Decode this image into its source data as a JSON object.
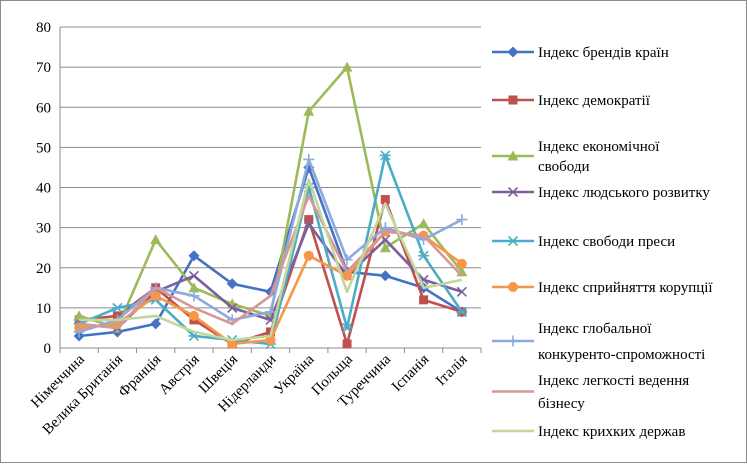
{
  "chart_data": {
    "type": "line",
    "title": "",
    "xlabel": "",
    "ylabel": "",
    "ylim": [
      0,
      80
    ],
    "yticks": [
      0,
      10,
      20,
      30,
      40,
      50,
      60,
      70,
      80
    ],
    "grid": true,
    "legend_position": "right",
    "categories": [
      "Німеччина",
      "Велика Британія",
      "Франція",
      "Австрія",
      "Швеція",
      "Нідерланди",
      "Україна",
      "Польща",
      "Туреччина",
      "Іспанія",
      "Італія"
    ],
    "series": [
      {
        "name": "Індекс брендів країн",
        "color": "#4472C4",
        "marker": "diamond",
        "values": [
          3,
          4,
          6,
          23,
          16,
          14,
          45,
          19,
          18,
          15,
          9
        ]
      },
      {
        "name": "Індекс демократії",
        "color": "#C0504D",
        "marker": "square",
        "values": [
          7,
          8,
          15,
          7,
          1,
          4,
          32,
          1,
          37,
          12,
          9
        ]
      },
      {
        "name": "Індекс економічної свободи",
        "color": "#9BBB59",
        "marker": "triangle",
        "values": [
          8,
          5,
          27,
          15,
          11,
          8,
          59,
          70,
          25,
          31,
          19
        ]
      },
      {
        "name": "Індекс людського розвитку",
        "color": "#7D5FA0",
        "marker": "x",
        "values": [
          6,
          5,
          14,
          18,
          10,
          7,
          31,
          18,
          27,
          17,
          14
        ]
      },
      {
        "name": "Індекс свободи преси",
        "color": "#4BACC6",
        "marker": "asterisk",
        "values": [
          6,
          10,
          12,
          3,
          2,
          1,
          40,
          5,
          48,
          23,
          9
        ]
      },
      {
        "name": "Індекс сприйняття корупції",
        "color": "#F79646",
        "marker": "circle",
        "values": [
          5,
          6,
          13,
          8,
          1,
          2,
          23,
          18,
          29,
          28,
          21
        ]
      },
      {
        "name": "Індекс глобальної конкуренто-спроможності",
        "color": "#8EA9DB",
        "marker": "plus",
        "values": [
          4,
          7,
          15,
          13,
          7,
          9,
          47,
          22,
          30,
          27,
          32
        ]
      },
      {
        "name": "Індекс легкості ведення бізнесу",
        "color": "#D99694",
        "marker": "none",
        "values": [
          6,
          5,
          15,
          10,
          6,
          13,
          38,
          19,
          29,
          28,
          18
        ]
      },
      {
        "name": "Індекс крихких держав",
        "color": "#C3D69B",
        "marker": "none",
        "values": [
          7,
          7,
          8,
          4,
          2,
          3,
          42,
          14,
          36,
          15,
          17
        ]
      }
    ]
  }
}
